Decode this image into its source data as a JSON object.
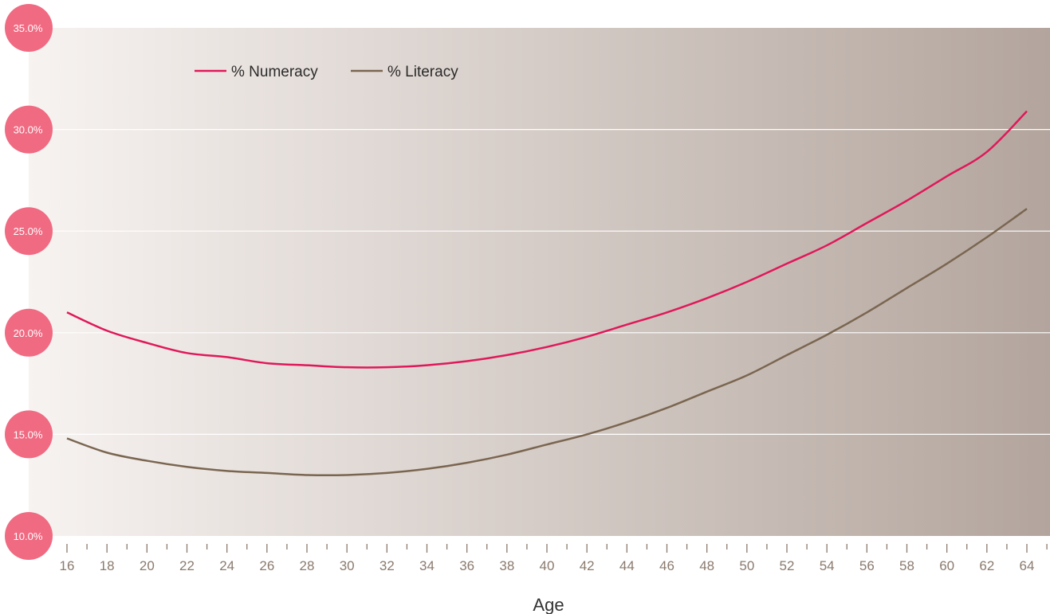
{
  "chart_data": {
    "type": "line",
    "xlabel": "Age",
    "ylabel": "",
    "xlim": [
      16,
      64
    ],
    "ylim": [
      10,
      35
    ],
    "x_ticks": [
      "16",
      "18",
      "20",
      "22",
      "24",
      "26",
      "28",
      "30",
      "32",
      "34",
      "36",
      "38",
      "40",
      "42",
      "44",
      "46",
      "48",
      "50",
      "52",
      "54",
      "56",
      "58",
      "60",
      "62",
      "64"
    ],
    "y_ticks": [
      "10.0%",
      "15.0%",
      "20.0%",
      "25.0%",
      "30.0%",
      "35.0%"
    ],
    "grid": "horizontal",
    "legend_position": "top-left",
    "x": [
      16,
      18,
      20,
      22,
      24,
      26,
      28,
      30,
      32,
      34,
      36,
      38,
      40,
      42,
      44,
      46,
      48,
      50,
      52,
      54,
      56,
      58,
      60,
      62,
      64
    ],
    "series": [
      {
        "name": "% Numeracy",
        "color": "#e0185a",
        "values": [
          21.0,
          20.1,
          19.5,
          19.0,
          18.8,
          18.5,
          18.4,
          18.3,
          18.3,
          18.4,
          18.6,
          18.9,
          19.3,
          19.8,
          20.4,
          21.0,
          21.7,
          22.5,
          23.4,
          24.3,
          25.4,
          26.5,
          27.7,
          28.9,
          30.9
        ]
      },
      {
        "name": "% Literacy",
        "color": "#7a6650",
        "values": [
          14.8,
          14.1,
          13.7,
          13.4,
          13.2,
          13.1,
          13.0,
          13.0,
          13.1,
          13.3,
          13.6,
          14.0,
          14.5,
          15.0,
          15.6,
          16.3,
          17.1,
          17.9,
          18.9,
          19.9,
          21.0,
          22.2,
          23.4,
          24.7,
          26.1
        ]
      }
    ]
  },
  "colors": {
    "badge": "#f06a82",
    "gradient_start": "#f7f3f1",
    "gradient_end": "#b3a59d"
  }
}
